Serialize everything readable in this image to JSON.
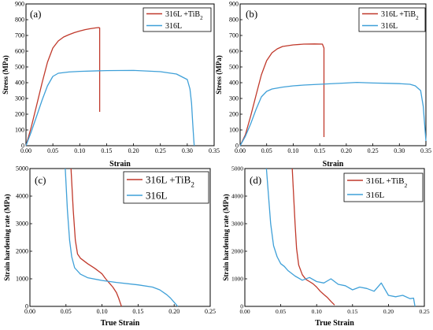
{
  "chart_data": [
    {
      "panel_label": "(a)",
      "type": "line",
      "xlabel": "Strain",
      "ylabel": "Stress (MPa)",
      "xlim": [
        0,
        0.35
      ],
      "ylim": [
        0,
        900
      ],
      "xticks": [
        "0.00",
        "0.05",
        "0.10",
        "0.15",
        "0.20",
        "0.25",
        "0.30",
        "0.35"
      ],
      "yticks": [
        "0",
        "100",
        "200",
        "300",
        "400",
        "500",
        "600",
        "700",
        "800",
        "900"
      ],
      "legend_position": "top-right",
      "series": [
        {
          "name": "316L +TiB2",
          "color": "#c0392b",
          "x": [
            0,
            0.01,
            0.02,
            0.03,
            0.04,
            0.05,
            0.06,
            0.07,
            0.08,
            0.09,
            0.1,
            0.11,
            0.12,
            0.13,
            0.135,
            0.137,
            0.137
          ],
          "y": [
            0,
            120,
            260,
            400,
            530,
            620,
            665,
            690,
            705,
            718,
            728,
            737,
            743,
            748,
            750,
            748,
            215
          ]
        },
        {
          "name": "316L",
          "color": "#3fa0d8",
          "x": [
            0,
            0.01,
            0.02,
            0.03,
            0.04,
            0.05,
            0.06,
            0.08,
            0.1,
            0.15,
            0.2,
            0.25,
            0.28,
            0.3,
            0.305,
            0.308,
            0.31,
            0.312,
            0.313
          ],
          "y": [
            0,
            90,
            190,
            290,
            380,
            440,
            460,
            468,
            472,
            477,
            478,
            470,
            455,
            420,
            360,
            270,
            150,
            40,
            0
          ]
        }
      ]
    },
    {
      "panel_label": "(b)",
      "type": "line",
      "xlabel": "Strain",
      "ylabel": "Stress (MPa)",
      "xlim": [
        0,
        0.35
      ],
      "ylim": [
        0,
        900
      ],
      "xticks": [
        "0.00",
        "0.05",
        "0.10",
        "0.15",
        "0.20",
        "0.25",
        "0.30",
        "0.35"
      ],
      "yticks": [
        "0",
        "100",
        "200",
        "300",
        "400",
        "500",
        "600",
        "700",
        "800",
        "900"
      ],
      "legend_position": "top-right",
      "series": [
        {
          "name": "316L +TiB2",
          "color": "#c0392b",
          "x": [
            0,
            0.01,
            0.02,
            0.03,
            0.04,
            0.05,
            0.06,
            0.07,
            0.08,
            0.1,
            0.12,
            0.14,
            0.155,
            0.158,
            0.158
          ],
          "y": [
            0,
            70,
            190,
            320,
            450,
            540,
            590,
            615,
            630,
            640,
            645,
            646,
            645,
            620,
            55
          ]
        },
        {
          "name": "316L",
          "color": "#3fa0d8",
          "x": [
            0,
            0.01,
            0.02,
            0.03,
            0.04,
            0.05,
            0.06,
            0.08,
            0.1,
            0.12,
            0.15,
            0.18,
            0.2,
            0.22,
            0.25,
            0.28,
            0.3,
            0.32,
            0.33,
            0.34,
            0.345,
            0.35
          ],
          "y": [
            0,
            60,
            140,
            230,
            310,
            345,
            360,
            372,
            380,
            385,
            390,
            395,
            398,
            402,
            398,
            396,
            394,
            390,
            380,
            350,
            250,
            30
          ]
        }
      ]
    },
    {
      "panel_label": "(c)",
      "type": "line",
      "xlabel": "True Strain",
      "ylabel": "Strain hardening rate (MPa)",
      "xlim": [
        0,
        0.25
      ],
      "ylim": [
        0,
        5000
      ],
      "xticks": [
        "0.00",
        "0.05",
        "0.10",
        "0.15",
        "0.20",
        "0.25"
      ],
      "yticks": [
        "0",
        "1000",
        "2000",
        "3000",
        "4000",
        "5000"
      ],
      "legend_position": "top-right",
      "series": [
        {
          "name": "316L +TiB2",
          "color": "#c0392b",
          "x": [
            0.057,
            0.06,
            0.063,
            0.066,
            0.07,
            0.08,
            0.09,
            0.1,
            0.105,
            0.11,
            0.115,
            0.12,
            0.123,
            0.125,
            0.127
          ],
          "y": [
            5000,
            3500,
            2400,
            1900,
            1750,
            1550,
            1380,
            1180,
            1000,
            850,
            700,
            500,
            300,
            150,
            0
          ]
        },
        {
          "name": "316L",
          "color": "#3fa0d8",
          "x": [
            0.049,
            0.052,
            0.055,
            0.058,
            0.062,
            0.07,
            0.08,
            0.1,
            0.12,
            0.15,
            0.17,
            0.18,
            0.19,
            0.195,
            0.2,
            0.205
          ],
          "y": [
            5000,
            3500,
            2400,
            1800,
            1400,
            1170,
            1040,
            940,
            870,
            780,
            700,
            600,
            420,
            300,
            150,
            0
          ]
        }
      ]
    },
    {
      "panel_label": "(d)",
      "type": "line",
      "xlabel": "True Strain",
      "ylabel": "Strain hardening rate (MPa)",
      "xlim": [
        0,
        0.25
      ],
      "ylim": [
        0,
        5000
      ],
      "xticks": [
        "0.00",
        "0.05",
        "0.10",
        "0.15",
        "0.20",
        "0.25"
      ],
      "yticks": [
        "0",
        "1000",
        "2000",
        "3000",
        "4000",
        "5000"
      ],
      "legend_position": "top-right",
      "series": [
        {
          "name": "316L +TiB2",
          "color": "#c0392b",
          "x": [
            0.066,
            0.068,
            0.07,
            0.072,
            0.075,
            0.08,
            0.085,
            0.09,
            0.095,
            0.1,
            0.105,
            0.11,
            0.115,
            0.12,
            0.125
          ],
          "y": [
            5000,
            4000,
            3000,
            2100,
            1500,
            1150,
            980,
            900,
            820,
            700,
            550,
            430,
            320,
            180,
            50
          ]
        },
        {
          "name": "316L",
          "color": "#3fa0d8",
          "x": [
            0.03,
            0.033,
            0.036,
            0.04,
            0.045,
            0.05,
            0.055,
            0.06,
            0.07,
            0.08,
            0.09,
            0.1,
            0.11,
            0.12,
            0.13,
            0.14,
            0.15,
            0.16,
            0.17,
            0.18,
            0.19,
            0.2,
            0.21,
            0.22,
            0.23,
            0.235,
            0.237
          ],
          "y": [
            5000,
            4000,
            3000,
            2200,
            1800,
            1550,
            1450,
            1300,
            1100,
            950,
            1050,
            900,
            850,
            1000,
            800,
            750,
            600,
            700,
            650,
            550,
            850,
            400,
            350,
            400,
            280,
            300,
            0
          ]
        }
      ]
    }
  ]
}
